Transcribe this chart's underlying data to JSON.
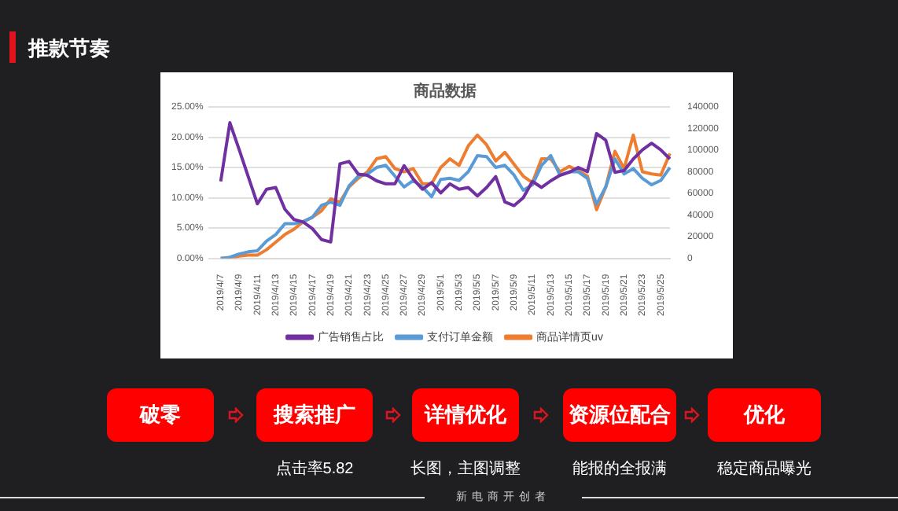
{
  "chart_data": {
    "type": "line",
    "title": "商品数据",
    "categories": [
      "2019/4/7",
      null,
      "2019/4/9",
      null,
      "2019/4/11",
      null,
      "2019/4/13",
      null,
      "2019/4/15",
      null,
      "2019/4/17",
      null,
      "2019/4/19",
      null,
      "2019/4/21",
      null,
      "2019/4/23",
      null,
      "2019/4/25",
      null,
      "2019/4/27",
      null,
      "2019/4/29",
      null,
      "2019/5/1",
      null,
      "2019/5/3",
      null,
      "2019/5/5",
      null,
      "2019/5/7",
      null,
      "2019/5/9",
      null,
      "2019/5/11",
      null,
      "2019/5/13",
      null,
      "2019/5/15",
      null,
      "2019/5/17",
      null,
      "2019/5/19",
      null,
      "2019/5/21",
      null,
      "2019/5/23",
      null,
      "2019/5/25",
      null
    ],
    "series": [
      {
        "name": "广告销售占比",
        "color": "#7030a0",
        "axis": "y",
        "values": [
          12.7,
          22.4,
          18,
          13.5,
          9,
          11.4,
          11.7,
          8.1,
          6.4,
          6.0,
          4.9,
          3.1,
          2.7,
          15.6,
          16,
          13.9,
          13.7,
          12.8,
          12.3,
          12.3,
          15.3,
          13.1,
          11.4,
          12.5,
          10.8,
          12.3,
          11.4,
          11.7,
          10.3,
          11.7,
          13.5,
          9.3,
          8.7,
          10,
          12.7,
          11.7,
          12.8,
          13.7,
          14.2,
          15.0,
          14.3,
          20.6,
          19.5,
          14.2,
          14.5,
          16.4,
          17.9,
          19.0,
          17.9,
          16.4
        ]
      },
      {
        "name": "支付订单金额",
        "color": "#5b9bd5",
        "axis": "y2",
        "values": [
          0,
          1000,
          4000,
          6000,
          7000,
          16000,
          22000,
          32000,
          32000,
          34000,
          38000,
          49000,
          52000,
          49000,
          67000,
          76000,
          78000,
          84000,
          86000,
          76000,
          66000,
          72000,
          66000,
          57000,
          73000,
          74000,
          72000,
          80000,
          95000,
          94000,
          84000,
          86000,
          77000,
          63000,
          68000,
          86000,
          95000,
          77000,
          80000,
          80000,
          74000,
          50000,
          66000,
          92000,
          78000,
          83000,
          74000,
          68000,
          72000,
          84000
        ]
      },
      {
        "name": "商品详情页uv",
        "color": "#ed7d31",
        "axis": "y2",
        "values": [
          0,
          0,
          2000,
          3000,
          3000,
          8000,
          15000,
          22000,
          27000,
          34000,
          38000,
          44000,
          55000,
          52000,
          66000,
          74000,
          80000,
          92000,
          94000,
          83000,
          80000,
          83000,
          69000,
          69000,
          84000,
          92000,
          86000,
          104000,
          114000,
          105000,
          90000,
          98000,
          87000,
          76000,
          70000,
          92000,
          92000,
          80000,
          85000,
          81000,
          76000,
          45000,
          66000,
          99000,
          83000,
          114000,
          80000,
          78000,
          77000,
          97000
        ]
      }
    ],
    "ylim": [
      0,
      25
    ],
    "yticks": [
      {
        "value": 0,
        "label": "0.00%"
      },
      {
        "value": 5,
        "label": "5.00%"
      },
      {
        "value": 10,
        "label": "10.00%"
      },
      {
        "value": 15,
        "label": "15.00%"
      },
      {
        "value": 20,
        "label": "20.00%"
      },
      {
        "value": 25,
        "label": "25.00%"
      }
    ],
    "y2lim": [
      0,
      140000
    ],
    "y2ticks": [
      0,
      20000,
      40000,
      60000,
      80000,
      100000,
      120000,
      140000
    ],
    "grid": "y",
    "legend": "bottom",
    "marker": "none",
    "line_style": "solid",
    "annotations": [
      "推款节奏",
      "破零",
      "搜索推广",
      "详情优化",
      "资源位配合",
      "优化",
      "点击率5.82",
      "长图，主图调整",
      "能报的全报满",
      "稳定商品曝光",
      "新电商开创者"
    ]
  }
}
